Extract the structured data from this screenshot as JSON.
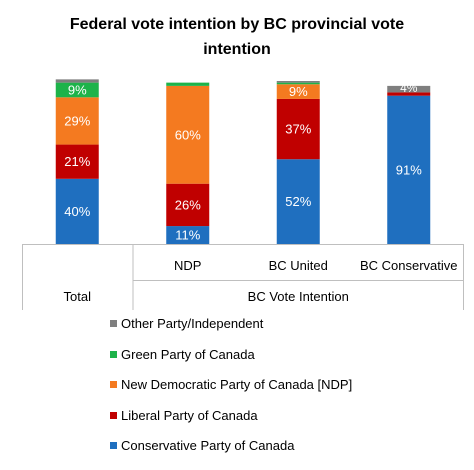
{
  "chart_data": {
    "type": "bar",
    "stacked": true,
    "title": "Federal vote intention by BC provincial vote intention",
    "title_lines": [
      "Federal vote intention by BC provincial vote",
      "intention"
    ],
    "categories": [
      "Total",
      "NDP",
      "BC United",
      "BC Conservative"
    ],
    "category_groups": [
      {
        "label": "Total",
        "members": [
          "Total"
        ]
      },
      {
        "label": "BC Vote Intention",
        "members": [
          "NDP",
          "BC United",
          "BC Conservative"
        ]
      }
    ],
    "category_labels_shown": [
      "",
      "NDP",
      "BC United",
      "BC Conservative"
    ],
    "ylim": [
      0,
      100
    ],
    "xlabel": "",
    "ylabel": "",
    "grid": false,
    "legend_position": "bottom",
    "series": [
      {
        "name": "Conservative Party of Canada",
        "color": "#1F6FBF",
        "values": [
          40,
          11,
          52,
          91
        ],
        "labels": [
          "40%",
          "11%",
          "52%",
          "91%"
        ]
      },
      {
        "name": "Liberal Party of Canada",
        "color": "#C00000",
        "values": [
          21,
          26,
          37,
          2
        ],
        "labels": [
          "21%",
          "26%",
          "37%",
          ""
        ]
      },
      {
        "name": "New Democratic Party of Canada [NDP]",
        "color": "#F47A20",
        "values": [
          29,
          60,
          9,
          0
        ],
        "labels": [
          "29%",
          "60%",
          "9%",
          ""
        ]
      },
      {
        "name": "Green Party of Canada",
        "color": "#1DB34A",
        "values": [
          9,
          2,
          1,
          0
        ],
        "labels": [
          "9%",
          "",
          "",
          ""
        ]
      },
      {
        "name": "Other Party/Independent",
        "color": "#7F7F7F",
        "values": [
          2,
          0,
          1,
          4
        ],
        "labels": [
          "",
          "",
          "",
          "4%"
        ]
      }
    ],
    "legend_order": [
      "Other Party/Independent",
      "Green Party of Canada",
      "New Democratic Party of Canada [NDP]",
      "Liberal Party of Canada",
      "Conservative Party of Canada"
    ]
  }
}
